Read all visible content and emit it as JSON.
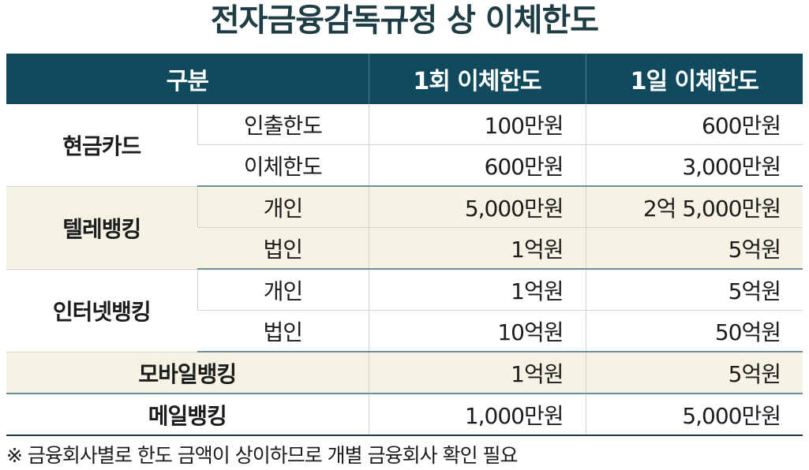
{
  "title": "전자금융감독규정 상 이체한도",
  "table": {
    "headers": [
      "구분",
      "1회 이체한도",
      "1일 이체한도"
    ],
    "groups": [
      {
        "category": "현금카드",
        "rows": [
          {
            "sub": "인출한도",
            "per_transaction": "100만원",
            "per_day": "600만원"
          },
          {
            "sub": "이체한도",
            "per_transaction": "600만원",
            "per_day": "3,000만원"
          }
        ]
      },
      {
        "category": "텔레뱅킹",
        "rows": [
          {
            "sub": "개인",
            "per_transaction": "5,000만원",
            "per_day": "2억 5,000만원"
          },
          {
            "sub": "법인",
            "per_transaction": "1억원",
            "per_day": "5억원"
          }
        ]
      },
      {
        "category": "인터넷뱅킹",
        "rows": [
          {
            "sub": "개인",
            "per_transaction": "1억원",
            "per_day": "5억원"
          },
          {
            "sub": "법인",
            "per_transaction": "10억원",
            "per_day": "50억원"
          }
        ]
      },
      {
        "category": "모바일뱅킹",
        "rows": [
          {
            "sub": "",
            "per_transaction": "1억원",
            "per_day": "5억원"
          }
        ]
      },
      {
        "category": "메일뱅킹",
        "rows": [
          {
            "sub": "",
            "per_transaction": "1,000만원",
            "per_day": "5,000만원"
          }
        ]
      }
    ]
  },
  "footnote": "※ 금융회사별로 한도 금액이 상이하므로 개별 금융회사 확인 필요",
  "colors": {
    "header_bg": "#11495d",
    "title": "#1f3d45",
    "shade_bg": "#f5f3e3"
  }
}
